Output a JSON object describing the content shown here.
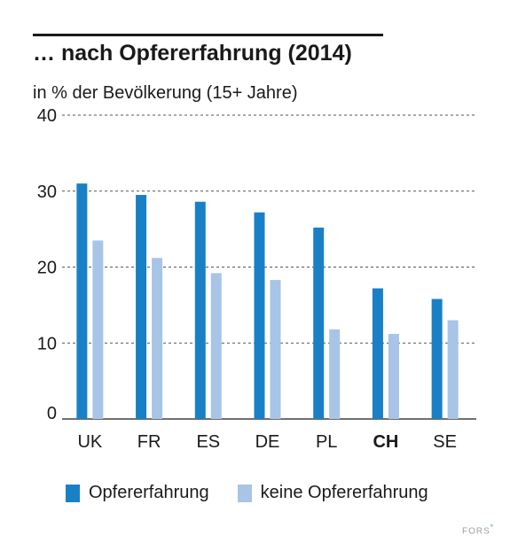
{
  "header": {
    "title": "… nach Opfererfahrung (2014)",
    "subtitle": "in % der Bevölkerung (15+ Jahre)"
  },
  "chart_data": {
    "type": "bar",
    "title": "… nach Opfererfahrung (2014)",
    "ylabel": "in % der Bevölkerung (15+ Jahre)",
    "xlabel": "",
    "ylim": [
      0,
      40
    ],
    "yticks": [
      0,
      10,
      20,
      30,
      40
    ],
    "grid": true,
    "legend_position": "bottom",
    "categories": [
      "UK",
      "FR",
      "ES",
      "DE",
      "PL",
      "CH",
      "SE"
    ],
    "highlight_category": "CH",
    "series": [
      {
        "name": "Opfererfahrung",
        "color": "#1a80c6",
        "values": [
          31,
          29.5,
          28.6,
          27.2,
          25.2,
          17.2,
          15.8
        ]
      },
      {
        "name": "keine Opfererfahrung",
        "color": "#a8c4e6",
        "values": [
          23.5,
          21.2,
          19.2,
          18.3,
          11.8,
          11.2,
          13
        ]
      }
    ]
  },
  "brand": {
    "text": "FORS",
    "mark": "°"
  }
}
